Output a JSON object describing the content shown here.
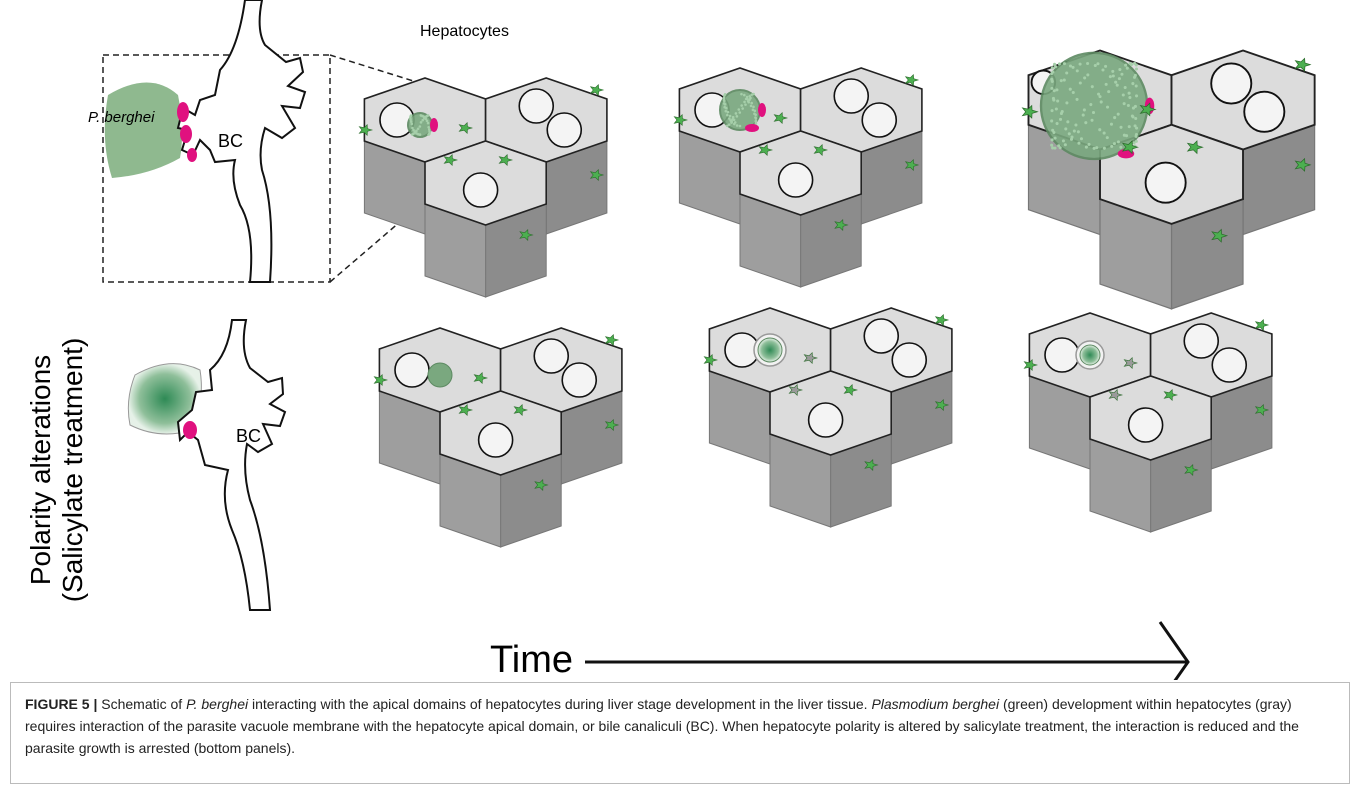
{
  "figure": {
    "labels": {
      "hepatocytes": "Hepatocytes",
      "parasite": "P. berghei",
      "bc_top": "BC",
      "bc_bottom": "BC",
      "time": "Time"
    },
    "side_label": [
      "Polarity alterations",
      "(Salicylate treatment)"
    ]
  },
  "caption": {
    "label": "FIGURE 5 |",
    "segments": [
      " Schematic of ",
      "P. berghei",
      " interacting with the apical domains of hepatocytes during liver stage development in the liver tissue. ",
      "Plasmodium berghei",
      " (green) development within hepatocytes (gray) requires interaction of the parasite vacuole membrane with the hepatocyte apical domain, or bile canaliculi (BC). When hepatocyte polarity is altered by salicylate treatment, the interaction is reduced and the parasite growth is arrested (bottom panels)."
    ]
  }
}
